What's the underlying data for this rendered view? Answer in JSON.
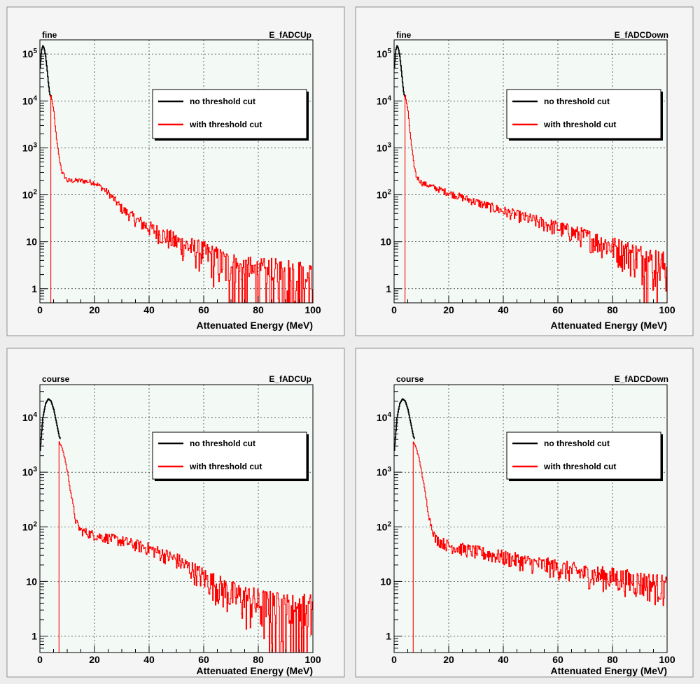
{
  "colors": {
    "canvas_bg": "#ededed",
    "pad_bg": "#f5f5f5",
    "frame_bg": "#f3faf6",
    "grid": "#000000",
    "no_cut": "#000000",
    "with_cut": "#ff0000"
  },
  "chart_data": [
    {
      "type": "line",
      "title_left": "fine",
      "title_right": "E_fADCUp",
      "xlabel": "Attenuated Energy (MeV)",
      "ylabel": "",
      "xlim": [
        0,
        100
      ],
      "ylim": [
        0.5,
        200000
      ],
      "yscale": "log",
      "grid": true,
      "legend_position": "top-right",
      "x_ticks": [
        "0",
        "20",
        "40",
        "60",
        "80",
        "100"
      ],
      "y_ticks": [
        {
          "value": 1,
          "mantissa": "1",
          "exp": ""
        },
        {
          "value": 10,
          "mantissa": "10",
          "exp": ""
        },
        {
          "value": 100,
          "mantissa": "10",
          "exp": "2"
        },
        {
          "value": 1000,
          "mantissa": "10",
          "exp": "3"
        },
        {
          "value": 10000,
          "mantissa": "10",
          "exp": "4"
        },
        {
          "value": 100000,
          "mantissa": "10",
          "exp": "5"
        }
      ],
      "series": [
        {
          "name": "no threshold cut",
          "color": "#000000",
          "x": [
            0,
            0.5,
            1,
            1.5,
            2,
            2.5,
            3,
            3.5,
            4
          ],
          "y": [
            50000,
            120000,
            150000,
            130000,
            90000,
            50000,
            25000,
            14000,
            12000
          ]
        },
        {
          "name": "with threshold cut",
          "color": "#ff0000",
          "x": [
            0,
            3.8,
            4,
            5,
            6,
            7,
            8,
            10,
            12,
            15,
            18,
            20,
            22,
            25,
            28,
            30,
            35,
            40,
            50,
            60,
            70,
            80,
            90,
            100
          ],
          "y": [
            0.5,
            0.5,
            13000,
            6000,
            1500,
            600,
            300,
            200,
            200,
            200,
            190,
            180,
            150,
            110,
            70,
            50,
            30,
            20,
            10,
            6,
            3,
            2,
            2,
            1.5
          ]
        }
      ]
    },
    {
      "type": "line",
      "title_left": "fine",
      "title_right": "E_fADCDown",
      "xlabel": "Attenuated Energy (MeV)",
      "ylabel": "",
      "xlim": [
        0,
        100
      ],
      "ylim": [
        0.5,
        200000
      ],
      "yscale": "log",
      "grid": true,
      "legend_position": "top-right",
      "x_ticks": [
        "0",
        "20",
        "40",
        "60",
        "80",
        "100"
      ],
      "y_ticks": [
        {
          "value": 1,
          "mantissa": "1",
          "exp": ""
        },
        {
          "value": 10,
          "mantissa": "10",
          "exp": ""
        },
        {
          "value": 100,
          "mantissa": "10",
          "exp": "2"
        },
        {
          "value": 1000,
          "mantissa": "10",
          "exp": "3"
        },
        {
          "value": 10000,
          "mantissa": "10",
          "exp": "4"
        },
        {
          "value": 100000,
          "mantissa": "10",
          "exp": "5"
        }
      ],
      "series": [
        {
          "name": "no threshold cut",
          "color": "#000000",
          "x": [
            0,
            0.5,
            1,
            1.5,
            2,
            2.5,
            3,
            3.5,
            4
          ],
          "y": [
            50000,
            120000,
            150000,
            130000,
            90000,
            50000,
            25000,
            14000,
            12000
          ]
        },
        {
          "name": "with threshold cut",
          "color": "#ff0000",
          "x": [
            0,
            3.8,
            4,
            5,
            6,
            7,
            8,
            10,
            15,
            20,
            30,
            40,
            50,
            60,
            70,
            80,
            90,
            100
          ],
          "y": [
            0.5,
            0.5,
            13000,
            6000,
            1500,
            500,
            250,
            180,
            140,
            110,
            70,
            45,
            30,
            20,
            13,
            8,
            5,
            3
          ]
        }
      ]
    },
    {
      "type": "line",
      "title_left": "course",
      "title_right": "E_fADCUp",
      "xlabel": "Attenuated Energy (MeV)",
      "ylabel": "",
      "xlim": [
        0,
        100
      ],
      "ylim": [
        0.5,
        40000
      ],
      "yscale": "log",
      "grid": true,
      "legend_position": "top-right",
      "x_ticks": [
        "0",
        "20",
        "40",
        "60",
        "80",
        "100"
      ],
      "y_ticks": [
        {
          "value": 1,
          "mantissa": "1",
          "exp": ""
        },
        {
          "value": 10,
          "mantissa": "10",
          "exp": ""
        },
        {
          "value": 100,
          "mantissa": "10",
          "exp": "2"
        },
        {
          "value": 1000,
          "mantissa": "10",
          "exp": "3"
        },
        {
          "value": 10000,
          "mantissa": "10",
          "exp": "4"
        }
      ],
      "series": [
        {
          "name": "no threshold cut",
          "color": "#000000",
          "x": [
            0,
            1,
            2,
            3,
            4,
            5,
            6,
            7,
            7.5
          ],
          "y": [
            2500,
            10000,
            18000,
            22000,
            20000,
            14000,
            8000,
            4500,
            4000
          ]
        },
        {
          "name": "with threshold cut",
          "color": "#ff0000",
          "x": [
            0,
            6.8,
            7,
            8,
            9,
            10,
            11,
            12,
            13,
            14,
            15,
            20,
            30,
            40,
            50,
            60,
            70,
            80,
            90,
            100
          ],
          "y": [
            0.5,
            0.5,
            3500,
            2800,
            1800,
            1000,
            500,
            250,
            130,
            100,
            85,
            70,
            55,
            40,
            25,
            12,
            6,
            4,
            3,
            3
          ]
        }
      ]
    },
    {
      "type": "line",
      "title_left": "course",
      "title_right": "E_fADCDown",
      "xlabel": "Attenuated Energy (MeV)",
      "ylabel": "",
      "xlim": [
        0,
        100
      ],
      "ylim": [
        0.5,
        40000
      ],
      "yscale": "log",
      "grid": true,
      "legend_position": "top-right",
      "x_ticks": [
        "0",
        "20",
        "40",
        "60",
        "80",
        "100"
      ],
      "y_ticks": [
        {
          "value": 1,
          "mantissa": "1",
          "exp": ""
        },
        {
          "value": 10,
          "mantissa": "10",
          "exp": ""
        },
        {
          "value": 100,
          "mantissa": "10",
          "exp": "2"
        },
        {
          "value": 1000,
          "mantissa": "10",
          "exp": "3"
        },
        {
          "value": 10000,
          "mantissa": "10",
          "exp": "4"
        }
      ],
      "series": [
        {
          "name": "no threshold cut",
          "color": "#000000",
          "x": [
            0,
            1,
            2,
            3,
            4,
            5,
            6,
            7,
            7.5
          ],
          "y": [
            2500,
            10000,
            18000,
            22000,
            20000,
            14000,
            8000,
            4500,
            4000
          ]
        },
        {
          "name": "with threshold cut",
          "color": "#ff0000",
          "x": [
            0,
            6.8,
            7,
            8,
            9,
            10,
            11,
            12,
            13,
            14,
            15,
            20,
            30,
            40,
            50,
            60,
            70,
            80,
            90,
            100
          ],
          "y": [
            0.5,
            0.5,
            3500,
            2800,
            1800,
            1000,
            500,
            250,
            130,
            90,
            60,
            45,
            35,
            28,
            22,
            18,
            14,
            12,
            10,
            8
          ]
        }
      ]
    }
  ]
}
